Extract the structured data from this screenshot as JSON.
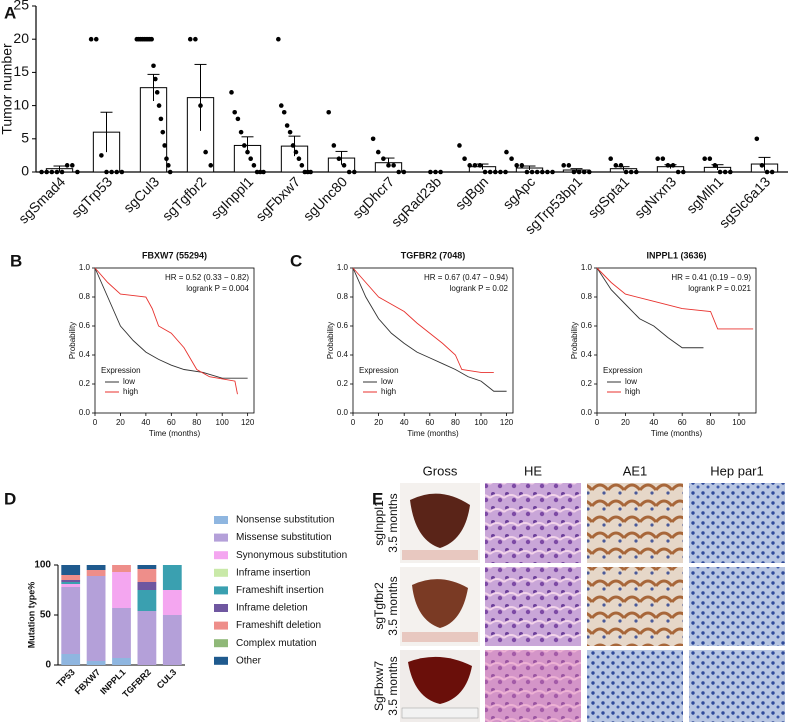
{
  "panel_labels": [
    "A",
    "B",
    "C",
    "D",
    "E"
  ],
  "chart_data": [
    {
      "type": "bar",
      "ylabel": "Tumor number",
      "categories": [
        "sgSmad4",
        "sgTrp53",
        "sgCul3",
        "sgTgfbr2",
        "sgInppl1",
        "sgFbxw7",
        "sgUnc80",
        "sgDhcr7",
        "sgRad23b",
        "sgBgn",
        "sgApc",
        "sgTrp53bp1",
        "sgSpta1",
        "sgNrxn3",
        "sgMlh1",
        "sgSlc6a13"
      ],
      "values": [
        0.5,
        6,
        12.7,
        11.2,
        4,
        3.9,
        2.1,
        1.4,
        0,
        0.8,
        0.6,
        0.3,
        0.5,
        0.8,
        0.7,
        1.2
      ],
      "errors": [
        0.4,
        3,
        2,
        5,
        1.3,
        1.5,
        1,
        0.7,
        0,
        0.4,
        0.3,
        0.2,
        0.3,
        0.3,
        0.4,
        1
      ],
      "points": [
        [
          0,
          0,
          0,
          0,
          0,
          1,
          1,
          0
        ],
        [
          20,
          20,
          2.5,
          0,
          0,
          0,
          0
        ],
        [
          20,
          20,
          20,
          20,
          20,
          20,
          20,
          20,
          20,
          16,
          14,
          12,
          10,
          8,
          6,
          4,
          2,
          1,
          0
        ],
        [
          20,
          20,
          10,
          3,
          1
        ],
        [
          12,
          9,
          8,
          6,
          4,
          3,
          2,
          1,
          0,
          0,
          0
        ],
        [
          20,
          10,
          9,
          7,
          6,
          4,
          3,
          2,
          1,
          0,
          0,
          0
        ],
        [
          9,
          4,
          2,
          1,
          0,
          0
        ],
        [
          5,
          3,
          2,
          1,
          1,
          0,
          0
        ],
        [
          0,
          0,
          0
        ],
        [
          4,
          2,
          1,
          1,
          1,
          0,
          0,
          0,
          0,
          0
        ],
        [
          3,
          2,
          1,
          1,
          0,
          0,
          0,
          0,
          0,
          0
        ],
        [
          1,
          1,
          0,
          0,
          0,
          0
        ],
        [
          2,
          1,
          1,
          0,
          0,
          0
        ],
        [
          2,
          2,
          1,
          1,
          0,
          0
        ],
        [
          2,
          2,
          1,
          0,
          0,
          0
        ],
        [
          5,
          1,
          0,
          0
        ]
      ],
      "color": "#ffffff",
      "ylim": [
        0,
        25
      ],
      "yticks": [
        0,
        5,
        10,
        15,
        20,
        25
      ]
    },
    {
      "type": "line",
      "title": "FBXW7 (55294)",
      "xlabel": "Time (months)",
      "ylabel": "Probability",
      "annotations": [
        "HR = 0.52 (0.33 − 0.82)",
        "logrank P = 0.004"
      ],
      "legend_title": "Expression",
      "series": [
        {
          "name": "low",
          "color": "#333333",
          "x": [
            0,
            5,
            10,
            15,
            20,
            30,
            40,
            50,
            60,
            70,
            85,
            100,
            120
          ],
          "values": [
            1,
            0.9,
            0.8,
            0.7,
            0.6,
            0.5,
            0.42,
            0.37,
            0.33,
            0.3,
            0.28,
            0.24,
            0.24
          ]
        },
        {
          "name": "high",
          "color": "#e8322e",
          "x": [
            0,
            10,
            20,
            40,
            45,
            50,
            60,
            70,
            80,
            90,
            110,
            112
          ],
          "values": [
            1,
            0.9,
            0.82,
            0.8,
            0.72,
            0.6,
            0.55,
            0.45,
            0.3,
            0.25,
            0.22,
            0.13
          ]
        }
      ],
      "xlim": [
        0,
        125
      ],
      "xticks": [
        0,
        20,
        40,
        60,
        80,
        100,
        120
      ],
      "ylim": [
        0,
        1
      ],
      "yticks": [
        {
          "value": 0,
          "label": "0.0"
        },
        0.2,
        0.4,
        0.6,
        0.8,
        {
          "value": 1,
          "label": "1.0"
        }
      ]
    },
    {
      "type": "line",
      "title": "TGFBR2 (7048)",
      "xlabel": "Time (months)",
      "ylabel": "Probability",
      "annotations": [
        "HR = 0.67 (0.47 − 0.94)",
        "logrank P = 0.02"
      ],
      "legend_title": "Expression",
      "series": [
        {
          "name": "low",
          "color": "#333333",
          "x": [
            0,
            10,
            20,
            30,
            40,
            50,
            60,
            70,
            80,
            90,
            100,
            110,
            120
          ],
          "values": [
            1,
            0.8,
            0.65,
            0.55,
            0.48,
            0.42,
            0.38,
            0.34,
            0.3,
            0.25,
            0.22,
            0.15,
            0.15
          ]
        },
        {
          "name": "high",
          "color": "#e8322e",
          "x": [
            0,
            10,
            20,
            40,
            50,
            60,
            70,
            80,
            85,
            100,
            110
          ],
          "values": [
            1,
            0.9,
            0.8,
            0.7,
            0.62,
            0.55,
            0.48,
            0.4,
            0.3,
            0.28,
            0.28
          ]
        }
      ],
      "xlim": [
        0,
        125
      ],
      "xticks": [
        0,
        20,
        40,
        60,
        80,
        100,
        120
      ],
      "ylim": [
        0,
        1
      ],
      "yticks": [
        {
          "value": 0,
          "label": "0.0"
        },
        0.2,
        0.4,
        0.6,
        0.8,
        {
          "value": 1,
          "label": "1.0"
        }
      ]
    },
    {
      "type": "line",
      "title": "INPPL1 (3636)",
      "xlabel": "Time (months)",
      "ylabel": "Probability",
      "annotations": [
        "HR = 0.41 (0.19 − 0.9)",
        "logrank P = 0.021"
      ],
      "legend_title": "Expression",
      "series": [
        {
          "name": "low",
          "color": "#333333",
          "x": [
            0,
            10,
            20,
            30,
            40,
            50,
            60,
            75
          ],
          "values": [
            1,
            0.85,
            0.75,
            0.65,
            0.6,
            0.52,
            0.45,
            0.45
          ]
        },
        {
          "name": "high",
          "color": "#e8322e",
          "x": [
            0,
            10,
            20,
            40,
            60,
            80,
            85,
            110
          ],
          "values": [
            1,
            0.9,
            0.82,
            0.77,
            0.72,
            0.7,
            0.58,
            0.58
          ]
        }
      ],
      "xlim": [
        0,
        112
      ],
      "xticks": [
        0,
        20,
        40,
        60,
        80,
        100
      ],
      "ylim": [
        0,
        1
      ],
      "yticks": [
        {
          "value": 0,
          "label": "0.0"
        },
        0.2,
        0.4,
        0.6,
        0.8,
        {
          "value": 1,
          "label": "1.0"
        }
      ]
    },
    {
      "type": "stacked-bar",
      "ylabel": "Mutation type%",
      "categories": [
        "TP53",
        "FBXW7",
        "INPPL1",
        "TGFBR2",
        "CUL3"
      ],
      "series": [
        {
          "name": "Nonsense substitution",
          "color": "#8fb6e0",
          "values": [
            11,
            4,
            7,
            0,
            0
          ]
        },
        {
          "name": "Missense substitution",
          "color": "#b4a0d9",
          "values": [
            67,
            85,
            50,
            54,
            50
          ]
        },
        {
          "name": "Synonymous substitution",
          "color": "#f4a6f0",
          "values": [
            3,
            0,
            36,
            0,
            25
          ]
        },
        {
          "name": "Inframe insertion",
          "color": "#c9e9a8",
          "values": [
            0,
            0,
            0,
            0,
            0
          ]
        },
        {
          "name": "Frameshift insertion",
          "color": "#3aa0b0",
          "values": [
            2,
            0,
            0,
            21,
            25
          ]
        },
        {
          "name": "Inframe deletion",
          "color": "#6f57a0",
          "values": [
            2,
            0,
            0,
            8,
            0
          ]
        },
        {
          "name": "Frameshift deletion",
          "color": "#ee8e8a",
          "values": [
            5,
            6,
            7,
            13,
            0
          ]
        },
        {
          "name": "Complex mutation",
          "color": "#8fb878",
          "values": [
            0,
            0,
            0,
            0,
            0
          ]
        },
        {
          "name": "Other",
          "color": "#1f5a8e",
          "values": [
            10,
            5,
            0,
            4,
            0
          ]
        }
      ],
      "ylim": [
        0,
        100
      ],
      "yticks": [
        0,
        50,
        100
      ]
    }
  ],
  "histology": {
    "columns": [
      "Gross",
      "HE",
      "AE1",
      "Hep par1"
    ],
    "rows": [
      {
        "label": "sgInppl1",
        "time": "3.5 months"
      },
      {
        "label": "sgTgfbr2",
        "time": "3.5 months"
      },
      {
        "label": "SgFbxw7",
        "time": "3.5 months"
      }
    ]
  }
}
